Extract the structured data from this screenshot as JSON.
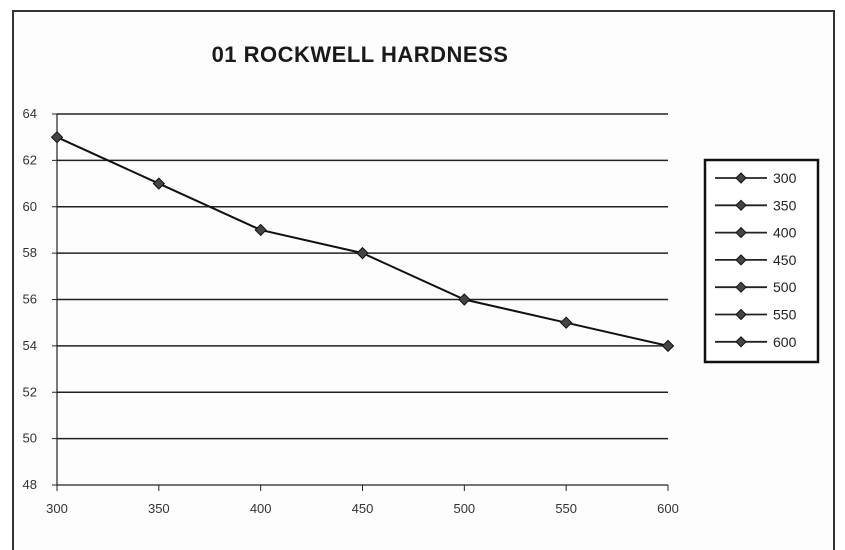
{
  "chart_data": {
    "type": "line",
    "title": "01 ROCKWELL HARDNESS",
    "xlabel": "",
    "ylabel": "",
    "x": [
      300,
      350,
      400,
      450,
      500,
      550,
      600
    ],
    "series": [
      {
        "values": [
          63,
          61,
          59,
          58,
          56,
          55,
          54
        ]
      }
    ],
    "xlim": [
      300,
      600
    ],
    "ylim": [
      48,
      64
    ],
    "yticks": [
      48,
      50,
      52,
      54,
      56,
      58,
      60,
      62,
      64
    ],
    "xticks": [
      300,
      350,
      400,
      450,
      500,
      550,
      600
    ],
    "grid": "horizontal",
    "legend": {
      "position": "right",
      "entries": [
        "300",
        "350",
        "400",
        "450",
        "500",
        "550",
        "600"
      ]
    },
    "colors": {
      "line": "#111111",
      "marker": "#444444",
      "grid": "#222222"
    }
  }
}
